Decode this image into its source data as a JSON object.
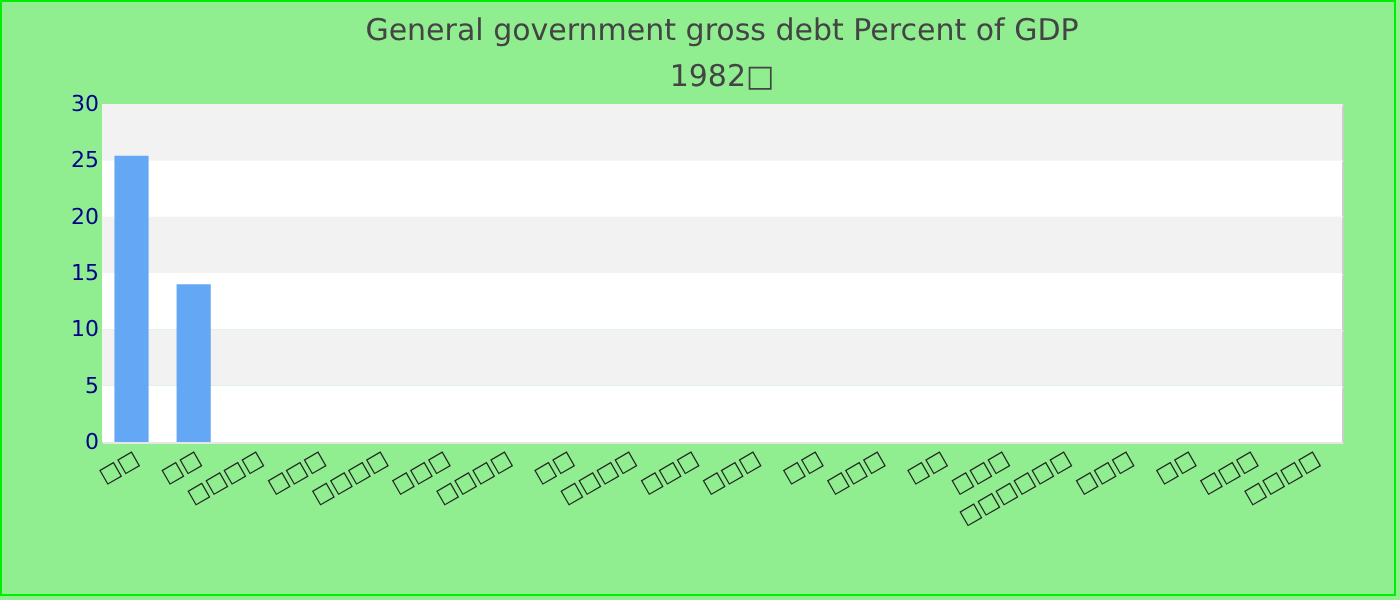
{
  "chart_data": {
    "type": "bar",
    "title": "General government gross debt  Percent of GDP",
    "subtitle": "1982□",
    "categories": [
      "□□",
      "□□",
      "□□□□",
      "□□□",
      "□□□□",
      "□□□",
      "□□□□",
      "□□",
      "□□□□",
      "□□□",
      "□□□",
      "□□",
      "□□□",
      "□□",
      "□□□",
      "□□□□□□",
      "□□□",
      "□□",
      "□□□",
      "□□□□"
    ],
    "values": [
      25.4,
      14.0,
      null,
      null,
      null,
      null,
      null,
      null,
      null,
      null,
      null,
      null,
      null,
      null,
      null,
      null,
      null,
      null,
      null,
      null
    ],
    "color": "#64a8f5",
    "ylim": [
      0,
      30
    ],
    "yticks": [
      0,
      5,
      10,
      15,
      20,
      25,
      30
    ],
    "grid": true
  }
}
